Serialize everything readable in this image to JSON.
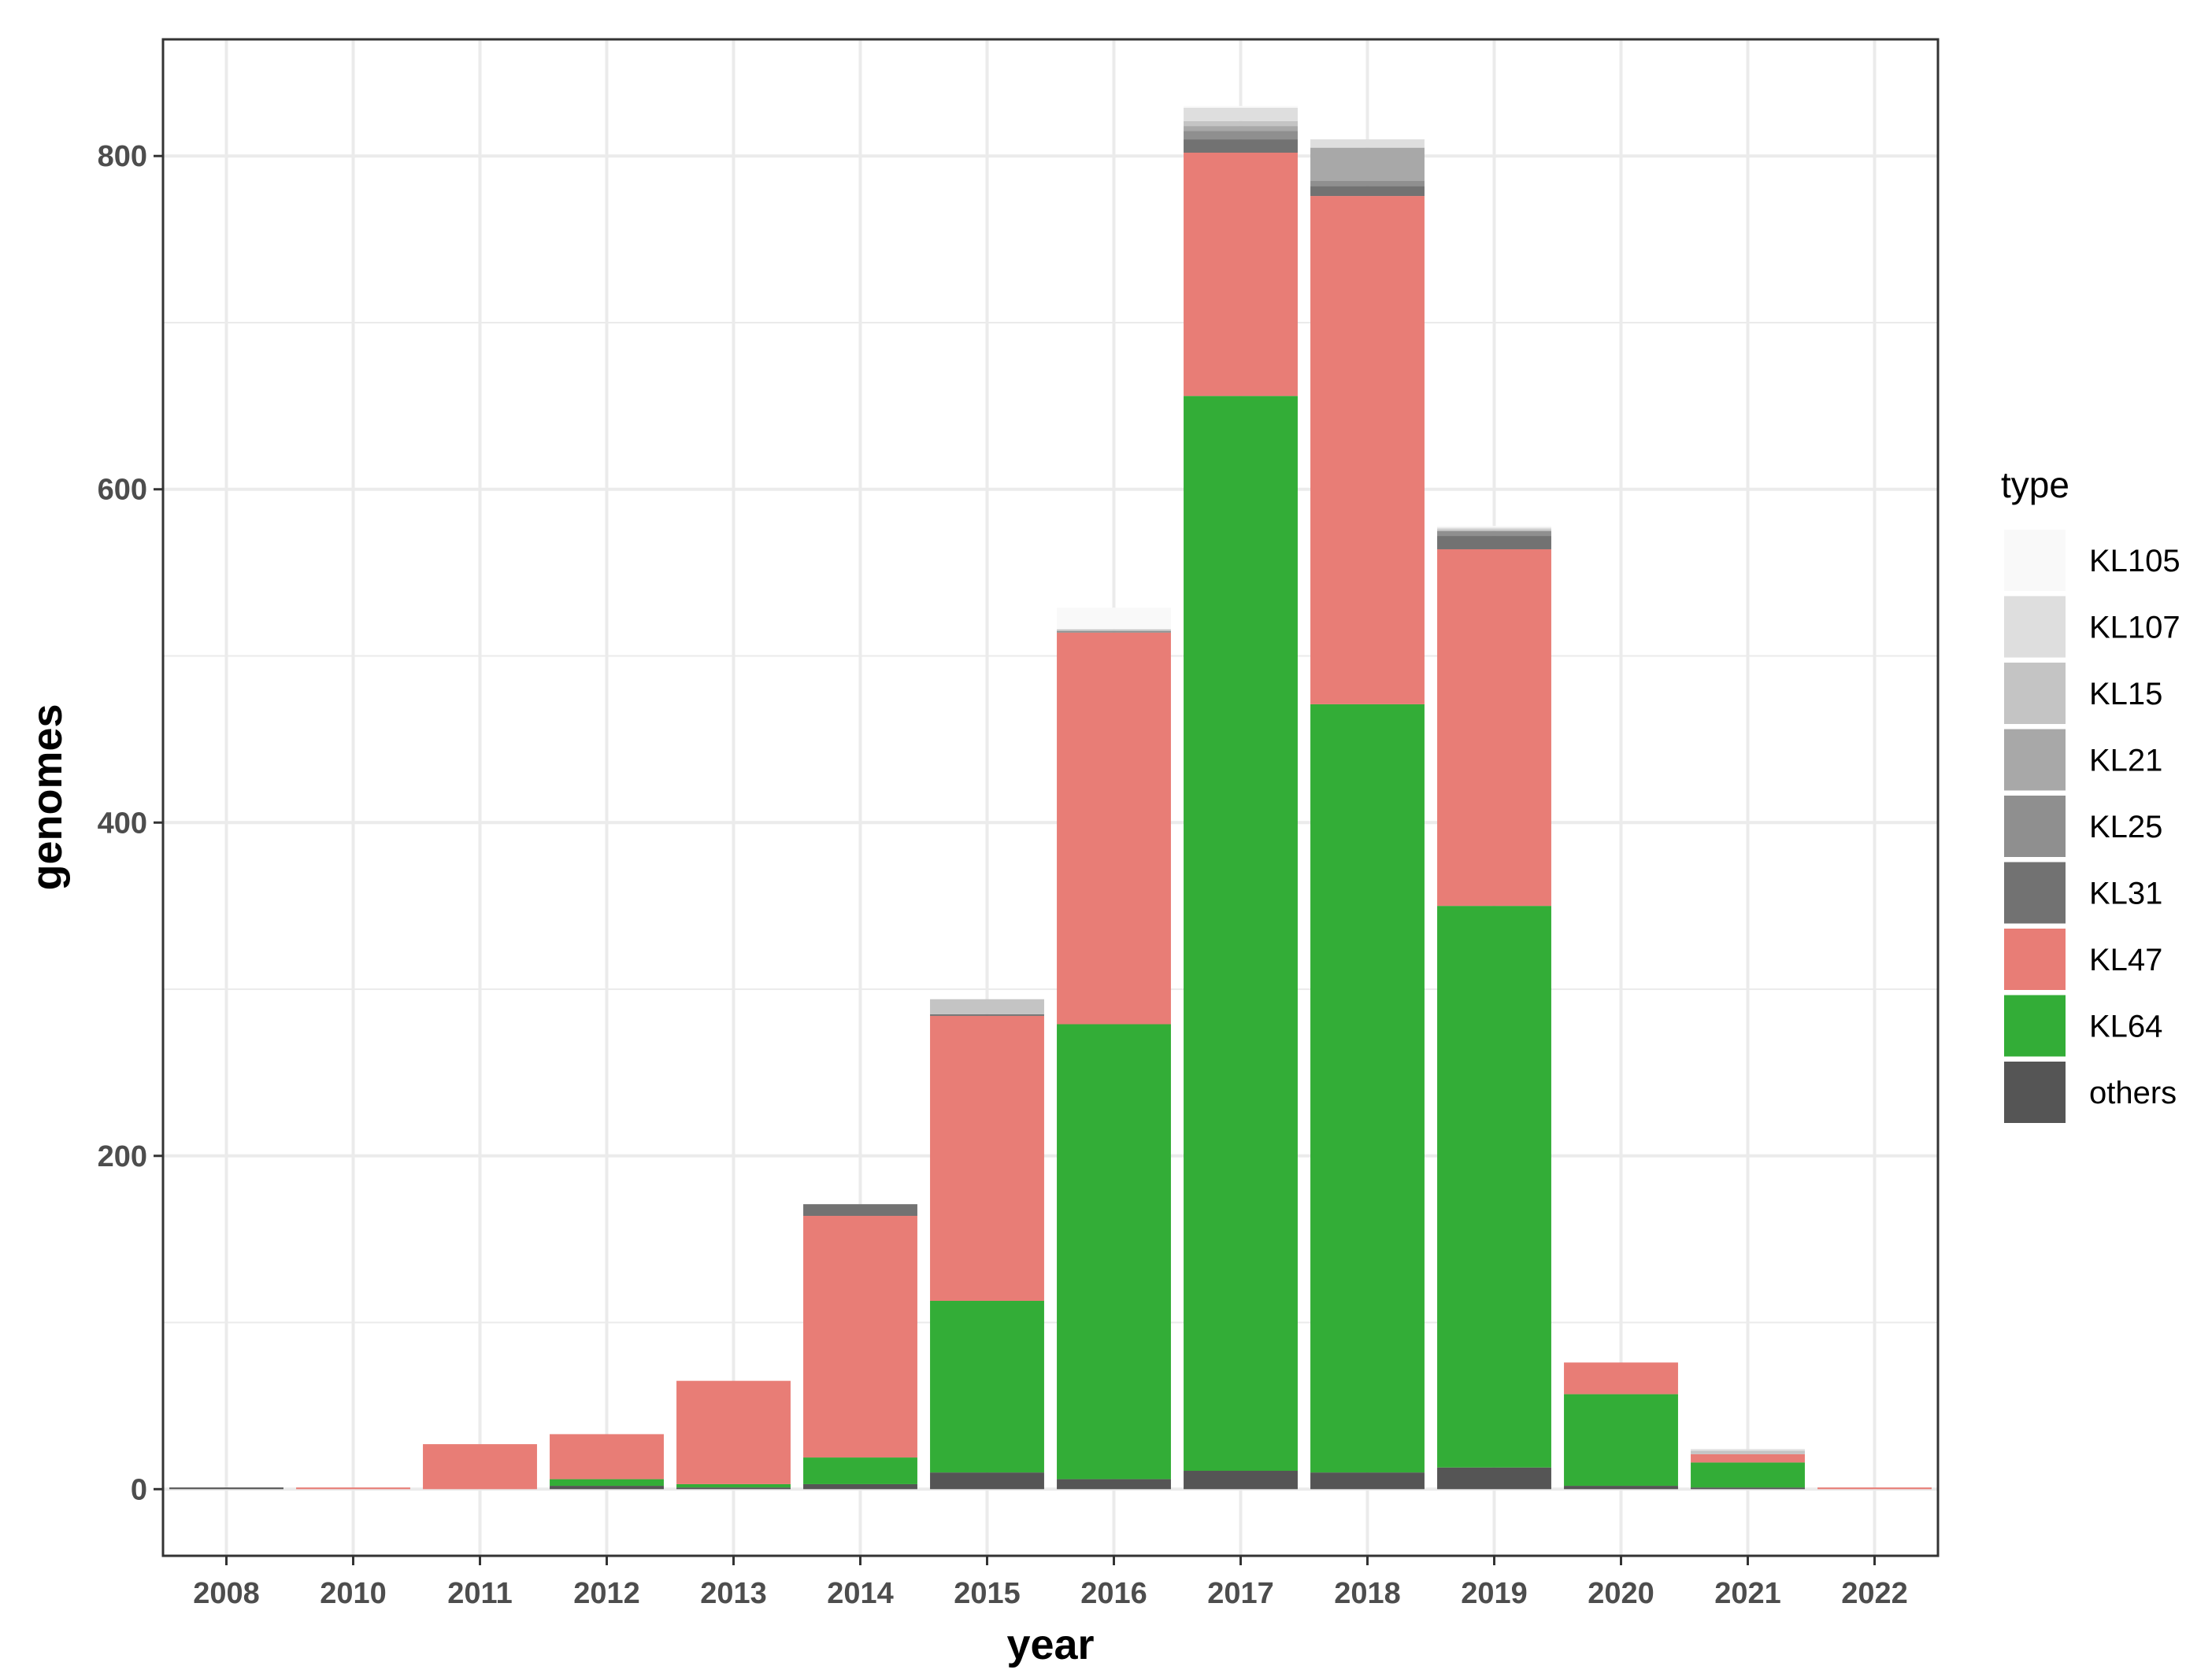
{
  "chart_data": {
    "type": "bar",
    "stacked": true,
    "xlabel": "year",
    "ylabel": "genomes",
    "ylim": [
      -40,
      870
    ],
    "yticks": [
      0,
      200,
      400,
      600,
      800
    ],
    "grid": true,
    "legend_title": "type",
    "legend_position": "right",
    "categories": [
      "2008",
      "2010",
      "2011",
      "2012",
      "2013",
      "2014",
      "2015",
      "2016",
      "2017",
      "2018",
      "2019",
      "2020",
      "2021",
      "2022"
    ],
    "series": [
      {
        "name": "others",
        "color": "#555555",
        "values": [
          1,
          0,
          0,
          2,
          1,
          3,
          10,
          6,
          11,
          10,
          13,
          2,
          1,
          0
        ]
      },
      {
        "name": "KL64",
        "color": "#33ad37",
        "values": [
          0,
          0,
          0,
          4,
          2,
          16,
          103,
          273,
          645,
          461,
          337,
          55,
          15,
          0
        ]
      },
      {
        "name": "KL47",
        "color": "#e87d76",
        "values": [
          0,
          1,
          27,
          27,
          62,
          145,
          171,
          235,
          146,
          305,
          214,
          19,
          5,
          1
        ]
      },
      {
        "name": "KL31",
        "color": "#727272",
        "values": [
          0,
          0,
          0,
          0,
          0,
          7,
          1,
          0,
          8,
          6,
          8,
          0,
          0,
          0
        ]
      },
      {
        "name": "KL25",
        "color": "#8f8f8f",
        "values": [
          0,
          0,
          0,
          0,
          0,
          0,
          0,
          1,
          5,
          3,
          3,
          0,
          0,
          0
        ]
      },
      {
        "name": "KL21",
        "color": "#a8a8a8",
        "values": [
          0,
          0,
          0,
          0,
          0,
          0,
          0,
          0,
          3,
          20,
          0,
          0,
          0,
          0
        ]
      },
      {
        "name": "KL15",
        "color": "#c4c4c4",
        "values": [
          0,
          0,
          0,
          0,
          0,
          0,
          9,
          1,
          3,
          0,
          1,
          0,
          2,
          0
        ]
      },
      {
        "name": "KL107",
        "color": "#dedede",
        "values": [
          0,
          0,
          0,
          0,
          0,
          0,
          0,
          0,
          8,
          5,
          1,
          0,
          1,
          0
        ]
      },
      {
        "name": "KL105",
        "color": "#f9f9f9",
        "values": [
          0,
          0,
          0,
          0,
          0,
          0,
          0,
          13,
          1,
          0,
          1,
          0,
          0,
          0
        ]
      }
    ],
    "legend_order": [
      "KL105",
      "KL107",
      "KL15",
      "KL21",
      "KL25",
      "KL31",
      "KL47",
      "KL64",
      "others"
    ]
  }
}
